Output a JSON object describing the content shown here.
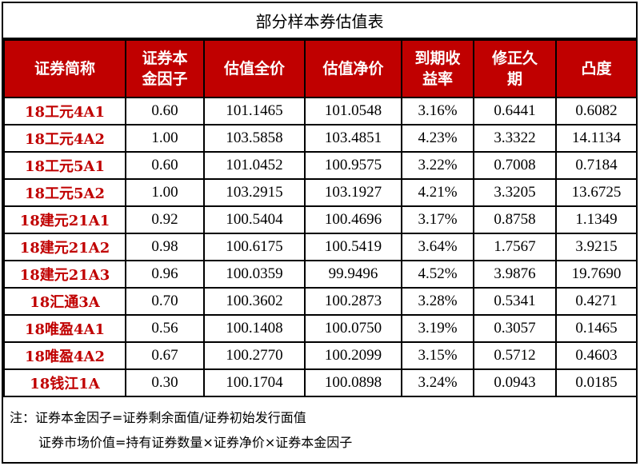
{
  "title": "部分样本券估值表",
  "headers": [
    "证券简称",
    "证券本\n金因子",
    "估值全价",
    "估值净价",
    "到期收\n益率",
    "修正久\n期",
    "凸度"
  ],
  "rows": [
    [
      "18工元4A1",
      "0.60",
      "101.1465",
      "101.0548",
      "3.16%",
      "0.6441",
      "0.6082"
    ],
    [
      "18工元4A2",
      "1.00",
      "103.5858",
      "103.4851",
      "4.23%",
      "3.3322",
      "14.1134"
    ],
    [
      "18工元5A1",
      "0.60",
      "101.0452",
      "100.9575",
      "3.22%",
      "0.7008",
      "0.7184"
    ],
    [
      "18工元5A2",
      "1.00",
      "103.2915",
      "103.1927",
      "4.21%",
      "3.3205",
      "13.6725"
    ],
    [
      "18建元21A1",
      "0.92",
      "100.5404",
      "100.4696",
      "3.17%",
      "0.8758",
      "1.1349"
    ],
    [
      "18建元21A2",
      "0.98",
      "100.6175",
      "100.5419",
      "3.64%",
      "1.7567",
      "3.9215"
    ],
    [
      "18建元21A3",
      "0.96",
      "100.0359",
      "99.9496",
      "4.52%",
      "3.9876",
      "19.7690"
    ],
    [
      "18汇通3A",
      "0.70",
      "100.3602",
      "100.2873",
      "3.28%",
      "0.5341",
      "0.4271"
    ],
    [
      "18唯盈4A1",
      "0.56",
      "100.1408",
      "100.0750",
      "3.19%",
      "0.3057",
      "0.1465"
    ],
    [
      "18唯盈4A2",
      "0.67",
      "100.2770",
      "100.2099",
      "3.15%",
      "0.5712",
      "0.4603"
    ],
    [
      "18钱江1A",
      "0.30",
      "100.1704",
      "100.0898",
      "3.24%",
      "0.0943",
      "0.0185"
    ]
  ],
  "notes": {
    "line1": "注：证券本金因子=证券剩余面值/证券初始发行面值",
    "line2": "证券市场价值=持有证券数量×证券净价×证券本金因子"
  },
  "colors": {
    "header_bg": "#c00000",
    "name_text": "#c00000"
  }
}
